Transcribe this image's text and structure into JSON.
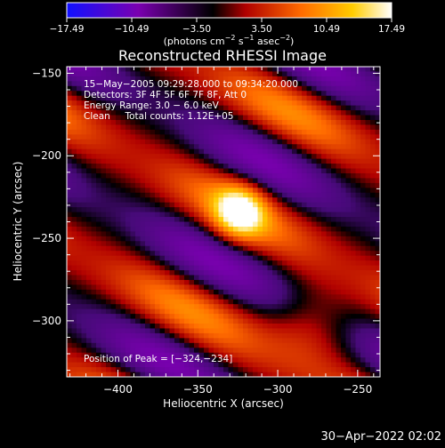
{
  "colorbar": {
    "ticks": [
      "−17.49",
      "−10.49",
      "−3.50",
      "3.50",
      "10.49",
      "17.49"
    ],
    "tick_values": [
      -17.49,
      -10.49,
      -3.5,
      3.5,
      10.49,
      17.49
    ],
    "range": [
      -17.49,
      17.49
    ],
    "unit_prefix": "(photons cm",
    "unit_exp1": "−2",
    "unit_mid1": " s",
    "unit_exp2": "−1",
    "unit_mid2": " asec",
    "unit_exp3": "−2",
    "unit_suffix": ")",
    "colors": [
      "#1010ff",
      "#7a00b0",
      "#000000",
      "#c00000",
      "#ff7a00",
      "#ffd000",
      "#ffffff"
    ]
  },
  "chart_data": {
    "type": "heatmap",
    "title": "Reconstructed RHESSI Image",
    "xlabel": "Heliocentric X (arcsec)",
    "ylabel": "Heliocentric Y (arcsec)",
    "xlim": [
      -432,
      -236
    ],
    "ylim": [
      -334,
      -146
    ],
    "xticks": [
      -400,
      -350,
      -300,
      -250
    ],
    "xtick_labels": [
      "−400",
      "−350",
      "−300",
      "−250"
    ],
    "yticks": [
      -150,
      -200,
      -250,
      -300
    ],
    "ytick_labels": [
      "−150",
      "−200",
      "−250",
      "−300"
    ],
    "annotations": [
      "15−May−2005 09:29:28.000 to 09:34:20.000",
      "Detectors: 3F 4F 5F 6F 7F 8F, Att 0",
      "Energy Range: 3.0 − 6.0 keV",
      "Clean     Total counts: 1.12E+05"
    ],
    "peak_label": "Position of Peak = [−324,−234]",
    "peak": [
      -324,
      -234
    ],
    "peak_value": 17.49,
    "value_range": [
      -17.49,
      17.49
    ]
  },
  "footer": {
    "date": "30−Apr−2022 02:02"
  }
}
